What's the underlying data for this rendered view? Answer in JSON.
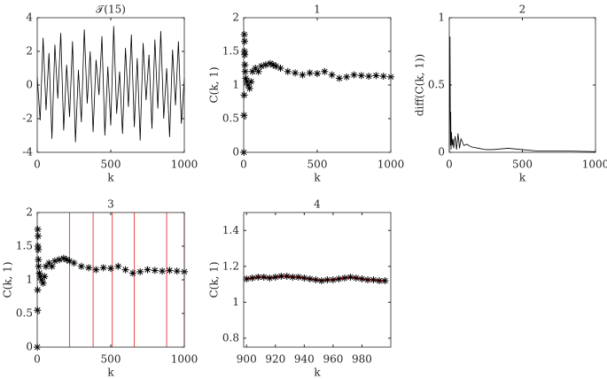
{
  "chart_data": [
    {
      "type": "line",
      "title": "𝒯(15)",
      "xlabel": "k",
      "color": "#000000",
      "x": [
        0,
        20,
        40,
        60,
        80,
        100,
        120,
        140,
        160,
        180,
        200,
        220,
        240,
        260,
        280,
        300,
        320,
        340,
        360,
        380,
        400,
        420,
        440,
        460,
        480,
        500,
        520,
        540,
        560,
        580,
        600,
        620,
        640,
        660,
        680,
        700,
        720,
        740,
        760,
        780,
        800,
        820,
        840,
        860,
        880,
        900,
        920,
        940,
        960,
        980,
        1000
      ],
      "values": [
        0.5,
        -2.1,
        2.8,
        -1.5,
        1.9,
        -3.2,
        2.4,
        -0.8,
        3.1,
        -2.7,
        1.2,
        -1.9,
        2.6,
        -3.4,
        0.9,
        -2.2,
        3.3,
        -1.1,
        2.0,
        -2.8,
        1.5,
        -0.6,
        2.9,
        -3.0,
        1.1,
        -2.4,
        3.5,
        -1.7,
        0.8,
        -2.9,
        2.2,
        -1.3,
        3.0,
        -2.5,
        1.6,
        -3.3,
        2.5,
        -0.9,
        1.8,
        -2.6,
        2.7,
        -1.4,
        3.2,
        -2.0,
        1.0,
        -3.1,
        2.1,
        -1.2,
        2.6,
        -2.3,
        0.4
      ],
      "xlim": [
        0,
        1000
      ],
      "xticks": [
        0,
        500,
        1000
      ],
      "ylim": [
        -4,
        4
      ],
      "yticks": [
        -4,
        -2,
        0,
        2,
        4
      ]
    },
    {
      "type": "scatter",
      "title": "1",
      "xlabel": "k",
      "ylabel": "C(k, 1)",
      "color": "#000000",
      "marker": "asterisk",
      "x": [
        1,
        2,
        3,
        4,
        5,
        6,
        7,
        8,
        10,
        15,
        20,
        30,
        40,
        50,
        60,
        80,
        100,
        120,
        150,
        180,
        200,
        220,
        250,
        300,
        350,
        400,
        450,
        500,
        550,
        600,
        650,
        700,
        750,
        800,
        850,
        900,
        950,
        1000
      ],
      "values": [
        0,
        0.55,
        0.85,
        1.75,
        1.5,
        1.65,
        1.45,
        1.3,
        1.2,
        1.1,
        1.05,
        1.0,
        0.95,
        1.05,
        1.2,
        1.25,
        1.2,
        1.28,
        1.3,
        1.32,
        1.3,
        1.28,
        1.25,
        1.2,
        1.18,
        1.15,
        1.18,
        1.17,
        1.2,
        1.15,
        1.1,
        1.12,
        1.15,
        1.14,
        1.13,
        1.14,
        1.13,
        1.12
      ],
      "xlim": [
        0,
        1000
      ],
      "xticks": [
        0,
        500,
        1000
      ],
      "ylim": [
        0,
        2
      ],
      "yticks": [
        0,
        0.5,
        1,
        1.5,
        2
      ]
    },
    {
      "type": "line",
      "title": "2",
      "xlabel": "k",
      "ylabel": "diff(C(k, 1))",
      "color": "#000000",
      "x": [
        0,
        5,
        8,
        10,
        12,
        15,
        20,
        25,
        30,
        40,
        50,
        60,
        70,
        80,
        100,
        120,
        150,
        200,
        250,
        300,
        400,
        500,
        600,
        700,
        800,
        1000
      ],
      "values": [
        0,
        0.86,
        0.05,
        0.3,
        0.02,
        0.15,
        0.05,
        0.1,
        0.03,
        0.12,
        0.02,
        0.14,
        0.03,
        0.1,
        0.05,
        0.06,
        0.04,
        0.03,
        0.02,
        0.02,
        0.03,
        0.02,
        0.01,
        0.01,
        0.01,
        0.005
      ],
      "xlim": [
        0,
        1000
      ],
      "xticks": [
        0,
        500,
        1000
      ],
      "ylim": [
        0,
        1
      ],
      "yticks": [
        0,
        0.5,
        1
      ]
    },
    {
      "type": "scatter",
      "title": "3",
      "xlabel": "k",
      "ylabel": "C(k, 1)",
      "color": "#000000",
      "marker": "asterisk",
      "x": [
        1,
        2,
        3,
        4,
        5,
        6,
        7,
        8,
        10,
        15,
        20,
        30,
        40,
        50,
        60,
        80,
        100,
        120,
        150,
        180,
        200,
        220,
        250,
        300,
        350,
        400,
        450,
        500,
        550,
        600,
        650,
        700,
        750,
        800,
        850,
        900,
        950,
        1000
      ],
      "values": [
        0,
        0.55,
        0.85,
        1.75,
        1.5,
        1.65,
        1.45,
        1.3,
        1.2,
        1.1,
        1.05,
        1.0,
        0.95,
        1.05,
        1.2,
        1.25,
        1.2,
        1.28,
        1.3,
        1.32,
        1.3,
        1.28,
        1.25,
        1.2,
        1.18,
        1.15,
        1.18,
        1.17,
        1.2,
        1.15,
        1.1,
        1.12,
        1.15,
        1.14,
        1.13,
        1.14,
        1.13,
        1.12
      ],
      "vlines": [
        220,
        380,
        510,
        660,
        880,
        1000
      ],
      "vline_color": "#e8494b",
      "xlim": [
        0,
        1000
      ],
      "xticks": [
        0,
        500,
        1000
      ],
      "ylim": [
        0,
        2
      ],
      "yticks": [
        0,
        0.5,
        1,
        1.5,
        2
      ]
    },
    {
      "type": "line",
      "title": "4",
      "xlabel": "k",
      "ylabel": "C(k, 1)",
      "color": "#e8232a",
      "marker": "asterisk",
      "marker_color": "#000000",
      "x": [
        900,
        904,
        908,
        912,
        916,
        920,
        924,
        928,
        932,
        936,
        940,
        944,
        948,
        952,
        956,
        960,
        964,
        968,
        972,
        976,
        980,
        984,
        988,
        992,
        996
      ],
      "values": [
        1.13,
        1.135,
        1.14,
        1.14,
        1.135,
        1.14,
        1.145,
        1.145,
        1.14,
        1.14,
        1.135,
        1.13,
        1.125,
        1.12,
        1.125,
        1.125,
        1.13,
        1.135,
        1.14,
        1.135,
        1.13,
        1.125,
        1.125,
        1.12,
        1.12
      ],
      "xlim": [
        898,
        1000
      ],
      "xticks": [
        900,
        920,
        940,
        960,
        980
      ],
      "ylim": [
        0.75,
        1.5
      ],
      "yticks": [
        0.8,
        1,
        1.2,
        1.4
      ]
    }
  ]
}
